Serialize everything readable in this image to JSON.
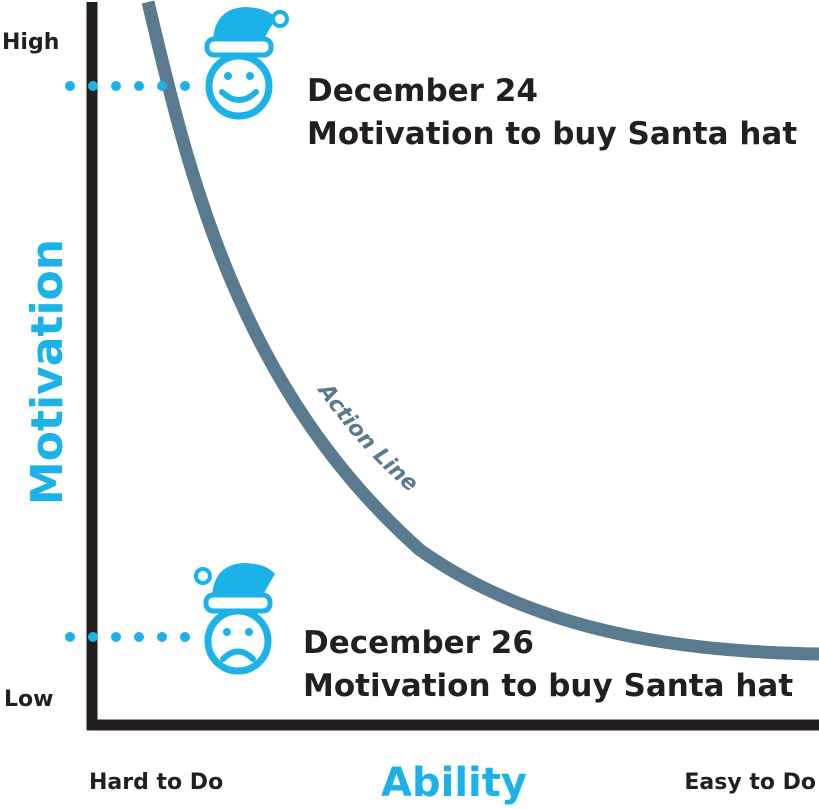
{
  "y_axis": {
    "title": "Motivation",
    "high_label": "High",
    "low_label": "Low"
  },
  "x_axis": {
    "title": "Ability",
    "left_label": "Hard to Do",
    "right_label": "Easy to Do"
  },
  "curve": {
    "label": "Action Line"
  },
  "annotations": [
    {
      "date": "December 24",
      "text": "Motivation to buy Santa hat",
      "mood": "happy",
      "icon": "happy-face-santa-hat-icon"
    },
    {
      "date": "December 26",
      "text": "Motivation to buy Santa hat",
      "mood": "sad",
      "icon": "sad-face-santa-hat-icon"
    }
  ],
  "colors": {
    "accent": "#1ab2e8",
    "curve": "#5a7b8f",
    "axis": "#231f20",
    "text": "#231f20",
    "background": "#ffffff"
  }
}
